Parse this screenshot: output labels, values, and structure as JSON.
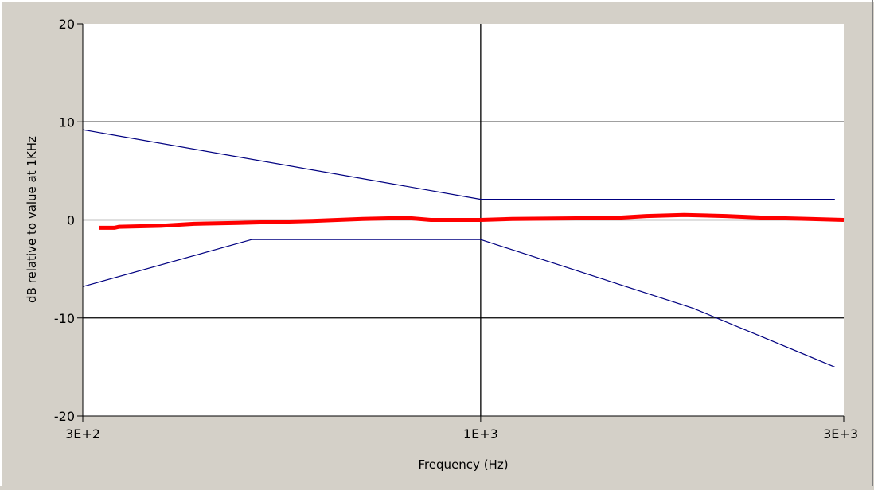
{
  "chart_data": {
    "type": "line",
    "title": "",
    "xlabel": "Frequency (Hz)",
    "ylabel": "dB relative to value at 1KHz",
    "x_scale": "log",
    "xlim": [
      300,
      3000
    ],
    "ylim": [
      -20,
      20
    ],
    "x_ticks": [
      {
        "value": 300,
        "label": "3E+2"
      },
      {
        "value": 1000,
        "label": "1E+3"
      },
      {
        "value": 3000,
        "label": "3E+3"
      }
    ],
    "y_ticks": [
      {
        "value": 20,
        "label": "20"
      },
      {
        "value": 10,
        "label": "10"
      },
      {
        "value": 0,
        "label": "0"
      },
      {
        "value": -10,
        "label": "-10"
      },
      {
        "value": -20,
        "label": "-20"
      }
    ],
    "grid": {
      "x": [
        1000
      ],
      "y": [
        10,
        0,
        -10
      ]
    },
    "series": [
      {
        "color": "#000080",
        "width": 1.2,
        "points": [
          [
            300,
            9.2
          ],
          [
            1000,
            2.1
          ],
          [
            2920,
            2.1
          ]
        ]
      },
      {
        "color": "#000080",
        "width": 1.2,
        "points": [
          [
            300,
            -6.8
          ],
          [
            500,
            -2.0
          ],
          [
            1000,
            -2.0
          ],
          [
            1900,
            -9.0
          ],
          [
            2920,
            -15.0
          ]
        ]
      },
      {
        "color": "#ff0000",
        "width": 5,
        "points": [
          [
            315,
            -0.8
          ],
          [
            330,
            -0.8
          ],
          [
            335,
            -0.7
          ],
          [
            380,
            -0.6
          ],
          [
            420,
            -0.4
          ],
          [
            480,
            -0.3
          ],
          [
            600,
            -0.1
          ],
          [
            700,
            0.1
          ],
          [
            800,
            0.2
          ],
          [
            860,
            0.0
          ],
          [
            1000,
            0.0
          ],
          [
            1100,
            0.1
          ],
          [
            1500,
            0.2
          ],
          [
            1650,
            0.4
          ],
          [
            1850,
            0.5
          ],
          [
            2100,
            0.4
          ],
          [
            2400,
            0.2
          ],
          [
            2700,
            0.1
          ],
          [
            3000,
            0.0
          ]
        ]
      }
    ]
  }
}
